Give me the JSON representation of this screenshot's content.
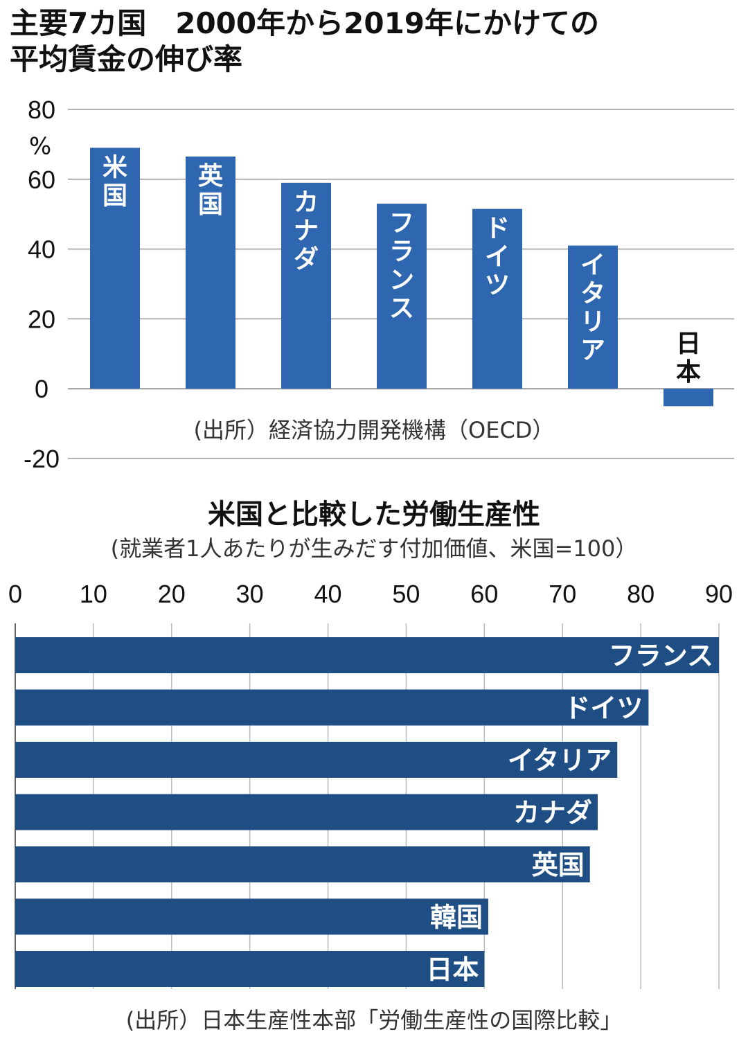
{
  "chart_data": [
    {
      "type": "bar",
      "title": "主要7カ国　2000年から2019年にかけての平均賃金の伸び率",
      "title_lines": [
        "主要7カ国　2000年から2019年にかけての",
        "平均賃金の伸び率"
      ],
      "ylabel": "%",
      "ylim": [
        -20,
        80
      ],
      "yticks": [
        "80",
        "60",
        "40",
        "20",
        "0",
        "-20"
      ],
      "ytick_values": [
        80,
        60,
        40,
        20,
        0,
        -20
      ],
      "categories": [
        "米国",
        "英国",
        "カナダ",
        "フランス",
        "ドイツ",
        "イタリア",
        "日本"
      ],
      "values": [
        69,
        66.5,
        59,
        53,
        51.5,
        41,
        -5
      ],
      "grid": true,
      "source": "(出所）経済協力開発機構（OECD）",
      "bar_color": "#2e66b0"
    },
    {
      "type": "bar",
      "orientation": "horizontal",
      "title": "米国と比較した労働生産性",
      "subtitle": "(就業者1人あたりが生みだす付加価値、米国=100）",
      "xlim": [
        0,
        90
      ],
      "xticks": [
        "0",
        "10",
        "20",
        "30",
        "40",
        "50",
        "60",
        "70",
        "80",
        "90"
      ],
      "xtick_values": [
        0,
        10,
        20,
        30,
        40,
        50,
        60,
        70,
        80,
        90
      ],
      "categories": [
        "フランス",
        "ドイツ",
        "イタリア",
        "カナダ",
        "英国",
        "韓国",
        "日本"
      ],
      "values": [
        90,
        81,
        77,
        74.5,
        73.5,
        60.5,
        60
      ],
      "grid": true,
      "source": "(出所）日本生産性本部「労働生産性の国際比較」",
      "bar_color": "#1f4e84"
    }
  ]
}
